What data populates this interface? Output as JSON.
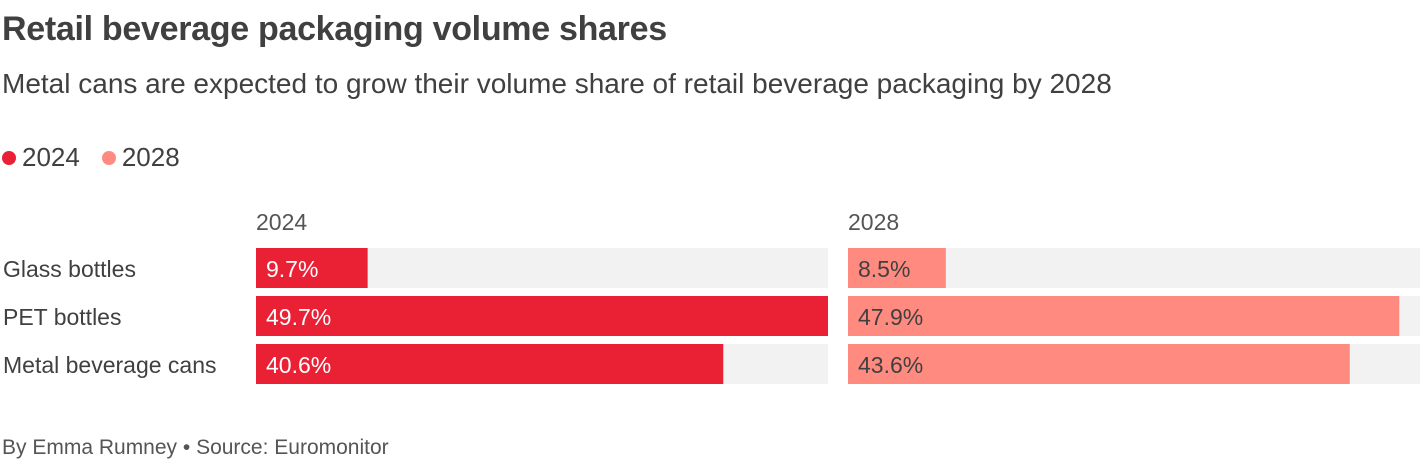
{
  "header": {
    "title": "Retail beverage packaging volume shares",
    "subtitle": "Metal cans are expected to grow their volume share of retail beverage packaging by 2028"
  },
  "legend": {
    "items": [
      {
        "label": "2024",
        "color": "#ea2035"
      },
      {
        "label": "2028",
        "color": "#ff8b80"
      }
    ]
  },
  "chart_data": {
    "type": "bar",
    "orientation": "horizontal",
    "categories": [
      "Glass bottles",
      "PET bottles",
      "Metal beverage cans"
    ],
    "xlim": [
      0,
      49.7
    ],
    "series": [
      {
        "name": "2024",
        "values": [
          9.7,
          49.7,
          40.6
        ],
        "labels": [
          "9.7%",
          "49.7%",
          "40.6%"
        ],
        "color": "#ea2035",
        "label_color": "#ffffff"
      },
      {
        "name": "2028",
        "values": [
          8.5,
          47.9,
          43.6
        ],
        "labels": [
          "8.5%",
          "47.9%",
          "43.6%"
        ],
        "color": "#ff8b80",
        "label_color": "#404040"
      }
    ],
    "track_color": "#f2f2f2"
  },
  "footer": {
    "credit": "By Emma Rumney • Source: Euromonitor"
  }
}
